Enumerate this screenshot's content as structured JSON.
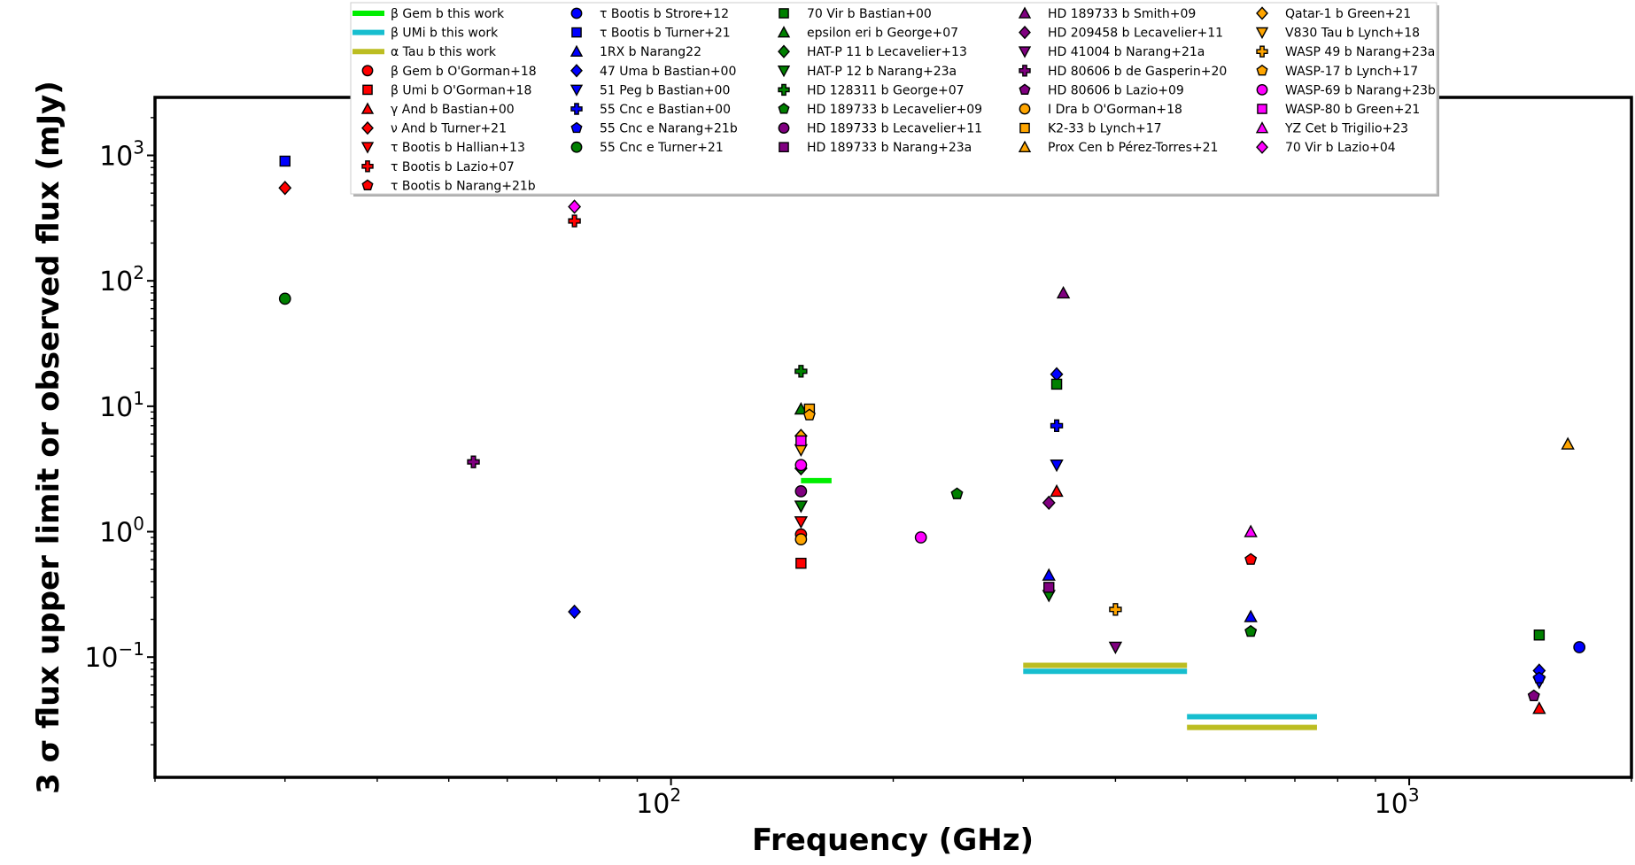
{
  "chart_data": {
    "type": "scatter",
    "title": "",
    "xlabel": "Frequency (GHz)",
    "ylabel": "3 σ flux upper limit or observed flux (mJy)",
    "xscale": "log",
    "yscale": "log",
    "xlim": [
      20,
      2000
    ],
    "ylim": [
      0.011,
      2900
    ],
    "xticks": [
      {
        "value": 100,
        "base": "10",
        "exp": "2"
      },
      {
        "value": 1000,
        "base": "10",
        "exp": "3"
      }
    ],
    "yticks": [
      {
        "value": 0.1,
        "base": "10",
        "exp": "−1"
      },
      {
        "value": 1,
        "base": "10",
        "exp": "0"
      },
      {
        "value": 10,
        "base": "10",
        "exp": "1"
      },
      {
        "value": 100,
        "base": "10",
        "exp": "2"
      },
      {
        "value": 1000,
        "base": "10",
        "exp": "3"
      }
    ],
    "legend_position": "top",
    "lines": [
      {
        "name": "β Gem b this work",
        "color": "#00ee00",
        "x": [
          150,
          165
        ],
        "y": 2.55
      },
      {
        "name": "β UMi b this work",
        "color": "#17becf",
        "x": [
          300,
          500
        ],
        "y": 0.077
      },
      {
        "name": "α Tau b this work",
        "color": "#bcbd22",
        "x": [
          300,
          500
        ],
        "y": 0.086
      },
      {
        "name": "β UMi b this work",
        "color": "#17becf",
        "x": [
          500,
          750
        ],
        "y": 0.0335
      },
      {
        "name": "α Tau b this work",
        "color": "#bcbd22",
        "x": [
          500,
          750
        ],
        "y": 0.0275
      }
    ],
    "series": [
      {
        "name": "β Gem b O'Gorman+18",
        "marker": "circle",
        "color": "#ff0000",
        "points": [
          [
            150,
            0.95
          ]
        ]
      },
      {
        "name": "β Umi b O'Gorman+18",
        "marker": "square",
        "color": "#ff0000",
        "points": [
          [
            150,
            0.56
          ]
        ]
      },
      {
        "name": "γ And b Bastian+00",
        "marker": "triangle",
        "color": "#ff0000",
        "points": [
          [
            333,
            2.1
          ],
          [
            1500,
            0.039
          ]
        ]
      },
      {
        "name": "ν And b Turner+21",
        "marker": "diamond",
        "color": "#ff0000",
        "points": [
          [
            30,
            550
          ]
        ]
      },
      {
        "name": "τ Bootis b Hallian+13",
        "marker": "triangle-down",
        "color": "#ff0000",
        "points": [
          [
            150,
            1.2
          ]
        ]
      },
      {
        "name": "τ Bootis b Lazio+07",
        "marker": "plus",
        "color": "#ff0000",
        "points": [
          [
            74,
            300
          ]
        ]
      },
      {
        "name": "τ Bootis b Narang+21b",
        "marker": "pentagon",
        "color": "#ff0000",
        "points": [
          [
            610,
            0.6
          ]
        ]
      },
      {
        "name": "τ Bootis b Strore+12",
        "marker": "circle",
        "color": "#0000ff",
        "points": [
          [
            1700,
            0.12
          ]
        ]
      },
      {
        "name": "τ Bootis b Turner+21",
        "marker": "square",
        "color": "#0000ff",
        "points": [
          [
            30,
            900
          ]
        ]
      },
      {
        "name": "1RX b Narang22",
        "marker": "triangle",
        "color": "#0000ff",
        "points": [
          [
            325,
            0.45
          ],
          [
            610,
            0.21
          ]
        ]
      },
      {
        "name": "47 Uma b Bastian+00",
        "marker": "diamond",
        "color": "#0000ff",
        "points": [
          [
            74,
            0.23
          ],
          [
            333,
            18
          ],
          [
            1500,
            0.078
          ]
        ]
      },
      {
        "name": "51 Peg b Bastian+00",
        "marker": "triangle-down",
        "color": "#0000ff",
        "points": [
          [
            333,
            3.4
          ],
          [
            1500,
            0.063
          ]
        ]
      },
      {
        "name": "55 Cnc e Bastian+00",
        "marker": "plus",
        "color": "#0000ff",
        "points": [
          [
            333,
            7
          ]
        ]
      },
      {
        "name": "55 Cnc e Narang+21b",
        "marker": "pentagon",
        "color": "#0000ff",
        "points": [
          [
            1500,
            0.068
          ]
        ]
      },
      {
        "name": "55 Cnc e Turner+21",
        "marker": "circle",
        "color": "#008000",
        "points": [
          [
            30,
            72
          ]
        ]
      },
      {
        "name": "70 Vir b Bastian+00",
        "marker": "square",
        "color": "#008000",
        "points": [
          [
            333,
            15
          ],
          [
            1500,
            0.15
          ]
        ]
      },
      {
        "name": "epsilon eri b George+07",
        "marker": "triangle",
        "color": "#008000",
        "points": [
          [
            150,
            9.5
          ]
        ]
      },
      {
        "name": "HAT-P 11 b  Lecavelier+13",
        "marker": "diamond",
        "color": "#008000",
        "points": [
          [
            150,
            3.2
          ]
        ]
      },
      {
        "name": "HAT-P 12 b Narang+23a",
        "marker": "triangle-down",
        "color": "#008000",
        "points": [
          [
            150,
            1.6
          ],
          [
            325,
            0.31
          ]
        ]
      },
      {
        "name": "HD 128311 b George+07",
        "marker": "plus",
        "color": "#008000",
        "points": [
          [
            150,
            19
          ]
        ]
      },
      {
        "name": "HD 189733 b  Lecavelier+09",
        "marker": "pentagon",
        "color": "#008000",
        "points": [
          [
            244,
            2
          ],
          [
            610,
            0.16
          ]
        ]
      },
      {
        "name": "HD 189733 b  Lecavelier+11",
        "marker": "circle",
        "color": "#800080",
        "points": [
          [
            150,
            2.1
          ]
        ]
      },
      {
        "name": "HD 189733 b Narang+23a",
        "marker": "square",
        "color": "#800080",
        "points": [
          [
            325,
            0.36
          ]
        ]
      },
      {
        "name": "HD 189733 b Smith+09",
        "marker": "triangle",
        "color": "#800080",
        "points": [
          [
            340,
            80
          ]
        ]
      },
      {
        "name": "HD 209458 b  Lecavelier+11",
        "marker": "diamond",
        "color": "#800080",
        "points": [
          [
            325,
            1.7
          ]
        ]
      },
      {
        "name": "HD 41004 b Narang+21a",
        "marker": "triangle-down",
        "color": "#800080",
        "points": [
          [
            400,
            0.12
          ]
        ]
      },
      {
        "name": "HD 80606 b de Gasperin+20",
        "marker": "plus",
        "color": "#800080",
        "points": [
          [
            54,
            3.6
          ]
        ]
      },
      {
        "name": "HD 80606 b Lazio+09",
        "marker": "pentagon",
        "color": "#800080",
        "points": [
          [
            1475,
            0.049
          ]
        ]
      },
      {
        "name": "I Dra b O'Gorman+18",
        "marker": "circle",
        "color": "#ffa500",
        "points": [
          [
            150,
            0.87
          ]
        ]
      },
      {
        "name": "K2-33 b Lynch+17",
        "marker": "square",
        "color": "#ffa500",
        "points": [
          [
            154,
            9.5
          ]
        ]
      },
      {
        "name": "Prox Cen b Pérez-Torres+21",
        "marker": "triangle",
        "color": "#ffa500",
        "points": [
          [
            1640,
            5
          ]
        ]
      },
      {
        "name": "Qatar-1 b Green+21",
        "marker": "diamond",
        "color": "#ffa500",
        "points": [
          [
            150,
            5.8
          ]
        ]
      },
      {
        "name": "V830 Tau b Lynch+18",
        "marker": "triangle-down",
        "color": "#ffa500",
        "points": [
          [
            150,
            4.5
          ]
        ]
      },
      {
        "name": "WASP 49 b Narang+23a",
        "marker": "plus",
        "color": "#ffa500",
        "points": [
          [
            400,
            0.24
          ]
        ]
      },
      {
        "name": "WASP-17 b Lynch+17",
        "marker": "pentagon",
        "color": "#ffa500",
        "points": [
          [
            154,
            8.5
          ]
        ]
      },
      {
        "name": "WASP-69 b Narang+23b",
        "marker": "circle",
        "color": "#ff00ff",
        "points": [
          [
            218,
            0.9
          ],
          [
            150,
            3.4
          ]
        ]
      },
      {
        "name": "WASP-80 b Green+21",
        "marker": "square",
        "color": "#ff00ff",
        "points": [
          [
            150,
            5.3
          ]
        ]
      },
      {
        "name": "YZ Cet b Trigilio+23",
        "marker": "triangle",
        "color": "#ff00ff",
        "points": [
          [
            610,
            1.0
          ]
        ]
      },
      {
        "name": "70 Vir b Lazio+04",
        "marker": "diamond",
        "color": "#ff00ff",
        "points": [
          [
            74,
            390
          ]
        ]
      }
    ],
    "legend": [
      {
        "label": "β Gem b this work",
        "kind": "line",
        "color": "#00ee00"
      },
      {
        "label": "β UMi b this work",
        "kind": "line",
        "color": "#17becf"
      },
      {
        "label": "α Tau b this work",
        "kind": "line",
        "color": "#bcbd22"
      },
      {
        "label": "β Gem b O'Gorman+18",
        "kind": "marker",
        "marker": "circle",
        "color": "#ff0000"
      },
      {
        "label": "β Umi b O'Gorman+18",
        "kind": "marker",
        "marker": "square",
        "color": "#ff0000"
      },
      {
        "label": "γ And b Bastian+00",
        "kind": "marker",
        "marker": "triangle",
        "color": "#ff0000"
      },
      {
        "label": "ν And b Turner+21",
        "kind": "marker",
        "marker": "diamond",
        "color": "#ff0000"
      },
      {
        "label": "τ Bootis b Hallian+13",
        "kind": "marker",
        "marker": "triangle-down",
        "color": "#ff0000"
      },
      {
        "label": "τ Bootis b Lazio+07",
        "kind": "marker",
        "marker": "plus",
        "color": "#ff0000"
      },
      {
        "label": "τ Bootis b Narang+21b",
        "kind": "marker",
        "marker": "pentagon",
        "color": "#ff0000"
      },
      {
        "label": "τ Bootis b Strore+12",
        "kind": "marker",
        "marker": "circle",
        "color": "#0000ff"
      },
      {
        "label": "τ Bootis b Turner+21",
        "kind": "marker",
        "marker": "square",
        "color": "#0000ff"
      },
      {
        "label": "1RX b Narang22",
        "kind": "marker",
        "marker": "triangle",
        "color": "#0000ff"
      },
      {
        "label": "47 Uma b Bastian+00",
        "kind": "marker",
        "marker": "diamond",
        "color": "#0000ff"
      },
      {
        "label": "51 Peg b Bastian+00",
        "kind": "marker",
        "marker": "triangle-down",
        "color": "#0000ff"
      },
      {
        "label": "55 Cnc e Bastian+00",
        "kind": "marker",
        "marker": "plus",
        "color": "#0000ff"
      },
      {
        "label": "55 Cnc e Narang+21b",
        "kind": "marker",
        "marker": "pentagon",
        "color": "#0000ff"
      },
      {
        "label": "55 Cnc e Turner+21",
        "kind": "marker",
        "marker": "circle",
        "color": "#008000"
      },
      {
        "label": "70 Vir b Bastian+00",
        "kind": "marker",
        "marker": "square",
        "color": "#008000"
      },
      {
        "label": "epsilon eri b George+07",
        "kind": "marker",
        "marker": "triangle",
        "color": "#008000"
      },
      {
        "label": "HAT-P 11 b  Lecavelier+13",
        "kind": "marker",
        "marker": "diamond",
        "color": "#008000"
      },
      {
        "label": "HAT-P 12 b Narang+23a",
        "kind": "marker",
        "marker": "triangle-down",
        "color": "#008000"
      },
      {
        "label": "HD 128311 b George+07",
        "kind": "marker",
        "marker": "plus",
        "color": "#008000"
      },
      {
        "label": "HD 189733 b  Lecavelier+09",
        "kind": "marker",
        "marker": "pentagon",
        "color": "#008000"
      },
      {
        "label": "HD 189733 b  Lecavelier+11",
        "kind": "marker",
        "marker": "circle",
        "color": "#800080"
      },
      {
        "label": "HD 189733 b Narang+23a",
        "kind": "marker",
        "marker": "square",
        "color": "#800080"
      },
      {
        "label": "HD 189733 b Smith+09",
        "kind": "marker",
        "marker": "triangle",
        "color": "#800080"
      },
      {
        "label": "HD 209458 b  Lecavelier+11",
        "kind": "marker",
        "marker": "diamond",
        "color": "#800080"
      },
      {
        "label": "HD 41004 b Narang+21a",
        "kind": "marker",
        "marker": "triangle-down",
        "color": "#800080"
      },
      {
        "label": "HD 80606 b de Gasperin+20",
        "kind": "marker",
        "marker": "plus",
        "color": "#800080"
      },
      {
        "label": "HD 80606 b Lazio+09",
        "kind": "marker",
        "marker": "pentagon",
        "color": "#800080"
      },
      {
        "label": "I Dra b O'Gorman+18",
        "kind": "marker",
        "marker": "circle",
        "color": "#ffa500"
      },
      {
        "label": "K2-33 b Lynch+17",
        "kind": "marker",
        "marker": "square",
        "color": "#ffa500"
      },
      {
        "label": "Prox Cen b Pérez-Torres+21",
        "kind": "marker",
        "marker": "triangle",
        "color": "#ffa500"
      },
      {
        "label": "Qatar-1 b Green+21",
        "kind": "marker",
        "marker": "diamond",
        "color": "#ffa500"
      },
      {
        "label": "V830 Tau b Lynch+18",
        "kind": "marker",
        "marker": "triangle-down",
        "color": "#ffa500"
      },
      {
        "label": "WASP 49 b Narang+23a",
        "kind": "marker",
        "marker": "plus",
        "color": "#ffa500"
      },
      {
        "label": "WASP-17 b Lynch+17",
        "kind": "marker",
        "marker": "pentagon",
        "color": "#ffa500"
      },
      {
        "label": "WASP-69 b Narang+23b",
        "kind": "marker",
        "marker": "circle",
        "color": "#ff00ff"
      },
      {
        "label": "WASP-80 b Green+21",
        "kind": "marker",
        "marker": "square",
        "color": "#ff00ff"
      },
      {
        "label": "YZ Cet b Trigilio+23",
        "kind": "marker",
        "marker": "triangle",
        "color": "#ff00ff"
      },
      {
        "label": "70 Vir b Lazio+04",
        "kind": "marker",
        "marker": "diamond",
        "color": "#ff00ff"
      }
    ]
  }
}
